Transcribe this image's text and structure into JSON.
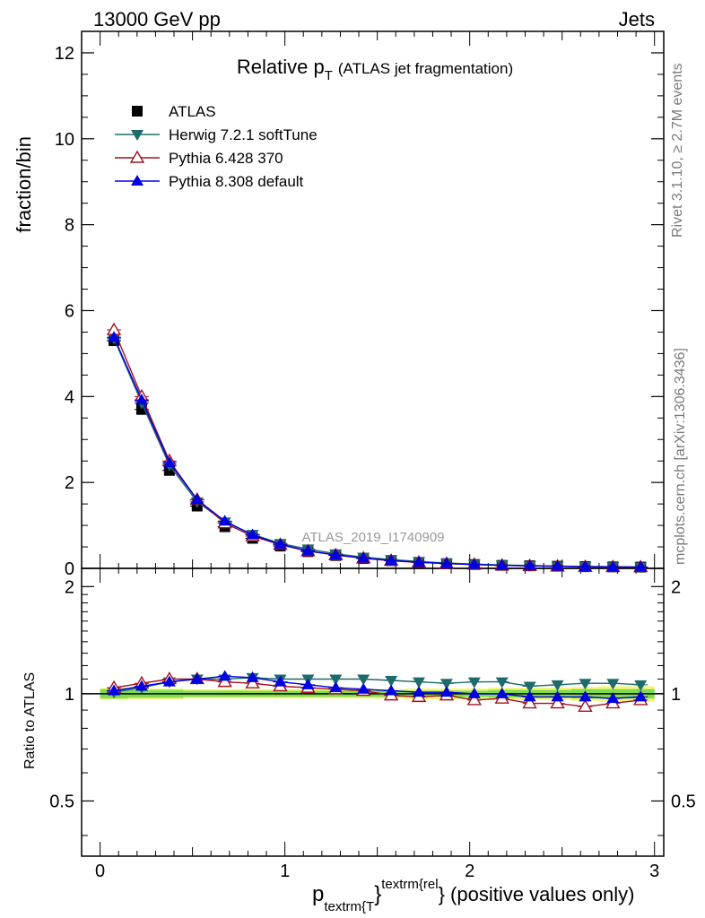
{
  "header": {
    "left": "13000 GeV pp",
    "right": "Jets"
  },
  "side_labels": {
    "rivet": "Rivet 3.1.10, ≥ 2.7M events",
    "mcplots": "mcplots.cern.ch [arXiv:1306.3436]"
  },
  "watermark": "ATLAS_2019_I1740909",
  "title": {
    "main": "Relative p",
    "sub": "T",
    "rest": "(ATLAS jet fragmentation)"
  },
  "xlabel": {
    "p": "p",
    "sub": "textrm{T",
    "close": "}",
    "sup": "textrm{rel",
    "rest": "} (positive values only)"
  },
  "colors": {
    "ATLAS": "#000000",
    "Herwig": "#1f6a6a",
    "Pythia6": "#a01020",
    "Pythia8": "#0000e0",
    "band_inner": "#7ddc4f",
    "band_outer": "#f2f57a"
  },
  "chart_data": [
    {
      "type": "line",
      "ylabel": "fraction/bin",
      "xlim": [
        -0.1,
        3.05
      ],
      "ylim": [
        0,
        12.5
      ],
      "yticks": [
        0,
        2,
        4,
        6,
        8,
        10,
        12
      ],
      "xticks": [
        0,
        1,
        2,
        3
      ],
      "legend_position": "top-left",
      "x": [
        0.075,
        0.225,
        0.375,
        0.525,
        0.675,
        0.825,
        0.975,
        1.125,
        1.275,
        1.425,
        1.575,
        1.725,
        1.875,
        2.025,
        2.175,
        2.325,
        2.475,
        2.625,
        2.775,
        2.925
      ],
      "series": [
        {
          "name": "ATLAS",
          "marker": "square",
          "values": [
            5.3,
            3.7,
            2.28,
            1.45,
            0.97,
            0.7,
            0.52,
            0.39,
            0.3,
            0.23,
            0.18,
            0.14,
            0.11,
            0.09,
            0.07,
            0.06,
            0.05,
            0.04,
            0.035,
            0.03
          ]
        },
        {
          "name": "Herwig 7.2.1 softTune",
          "marker": "triangle-down",
          "values": [
            5.35,
            3.85,
            2.4,
            1.55,
            1.08,
            0.79,
            0.58,
            0.45,
            0.34,
            0.26,
            0.205,
            0.16,
            0.124,
            0.1,
            0.08,
            0.066,
            0.055,
            0.045,
            0.039,
            0.033
          ]
        },
        {
          "name": "Pythia 6.428 370",
          "marker": "triangle-up-open",
          "values": [
            5.55,
            4.0,
            2.5,
            1.6,
            1.05,
            0.75,
            0.55,
            0.4,
            0.31,
            0.235,
            0.178,
            0.137,
            0.11,
            0.087,
            0.068,
            0.057,
            0.047,
            0.037,
            0.033,
            0.029
          ]
        },
        {
          "name": "Pythia 8.308 default",
          "marker": "triangle-up",
          "values": [
            5.38,
            3.92,
            2.46,
            1.6,
            1.1,
            0.78,
            0.56,
            0.41,
            0.31,
            0.24,
            0.183,
            0.143,
            0.112,
            0.09,
            0.07,
            0.059,
            0.049,
            0.039,
            0.034,
            0.03
          ]
        }
      ]
    },
    {
      "type": "line",
      "ylabel": "Ratio to ATLAS",
      "xlim": [
        -0.1,
        3.05
      ],
      "ylim": [
        0.35,
        2.25
      ],
      "yticks": [
        0.5,
        1,
        2
      ],
      "xticks": [
        0,
        1,
        2,
        3
      ],
      "x": [
        0.075,
        0.225,
        0.375,
        0.525,
        0.675,
        0.825,
        0.975,
        1.125,
        1.275,
        1.425,
        1.575,
        1.725,
        1.875,
        2.025,
        2.175,
        2.325,
        2.475,
        2.625,
        2.775,
        2.925
      ],
      "band": {
        "inner": [
          0.03,
          0.025,
          0.025,
          0.02,
          0.02,
          0.02,
          0.02,
          0.02,
          0.02,
          0.02,
          0.02,
          0.02,
          0.02,
          0.02,
          0.025,
          0.025,
          0.025,
          0.03,
          0.03,
          0.03
        ],
        "outer": [
          0.04,
          0.035,
          0.035,
          0.03,
          0.03,
          0.03,
          0.03,
          0.03,
          0.03,
          0.03,
          0.03,
          0.035,
          0.035,
          0.035,
          0.04,
          0.04,
          0.04,
          0.045,
          0.05,
          0.05
        ]
      },
      "series": [
        {
          "name": "Herwig 7.2.1 softTune",
          "marker": "triangle-down",
          "values": [
            1.01,
            1.04,
            1.08,
            1.1,
            1.1,
            1.11,
            1.1,
            1.1,
            1.1,
            1.1,
            1.09,
            1.08,
            1.07,
            1.08,
            1.08,
            1.05,
            1.06,
            1.07,
            1.07,
            1.06
          ]
        },
        {
          "name": "Pythia 6.428 370",
          "marker": "triangle-up-open",
          "values": [
            1.04,
            1.07,
            1.1,
            1.1,
            1.08,
            1.07,
            1.05,
            1.04,
            1.03,
            1.02,
            0.99,
            0.98,
            0.99,
            0.96,
            0.97,
            0.94,
            0.94,
            0.92,
            0.94,
            0.96
          ]
        },
        {
          "name": "Pythia 8.308 default",
          "marker": "triangle-up",
          "values": [
            1.02,
            1.05,
            1.08,
            1.1,
            1.12,
            1.11,
            1.08,
            1.06,
            1.04,
            1.03,
            1.02,
            1.01,
            1.01,
            1.0,
            1.0,
            0.98,
            0.98,
            0.98,
            0.97,
            0.98
          ]
        }
      ]
    }
  ]
}
